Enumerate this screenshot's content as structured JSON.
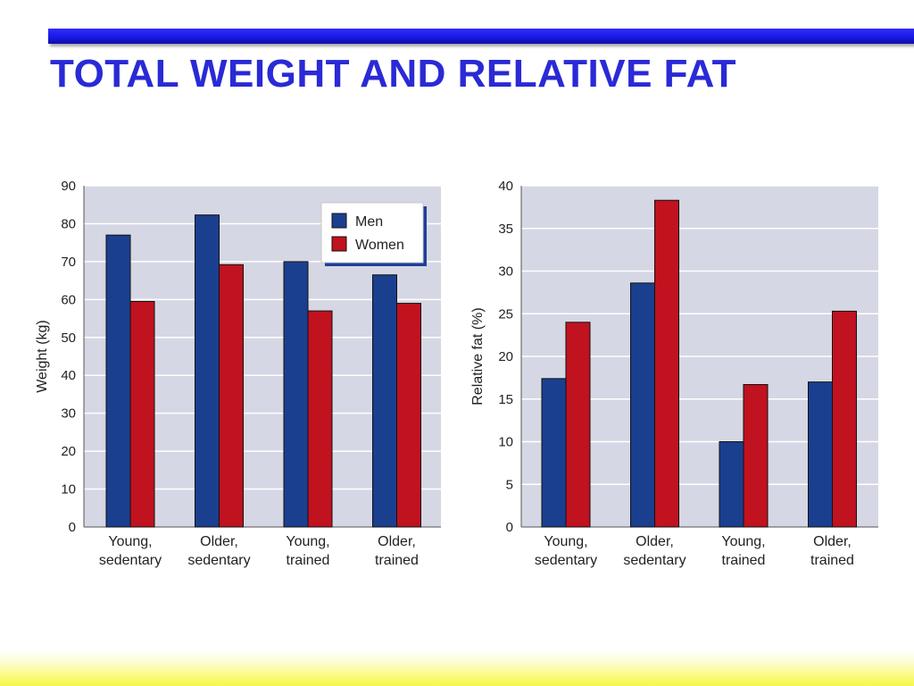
{
  "slide": {
    "title": "TOTAL WEIGHT AND RELATIVE FAT"
  },
  "colors": {
    "men": "#1b3f8f",
    "women": "#c0121f",
    "title": "#2a2ad6",
    "plot_bg": "#d5d7e4",
    "gridline": "#ffffff"
  },
  "chart_data": [
    {
      "type": "bar",
      "categories": [
        "Young,\nsedentary",
        "Older,\nsedentary",
        "Young,\ntrained",
        "Older,\ntrained"
      ],
      "series": [
        {
          "name": "Men",
          "values": [
            77,
            82.3,
            70,
            66.5
          ]
        },
        {
          "name": "Women",
          "values": [
            59.5,
            69.2,
            57,
            59
          ]
        }
      ],
      "ylabel": "Weight (kg)",
      "xlabel": "",
      "ylim": [
        0,
        90
      ],
      "yticks": [
        0,
        10,
        20,
        30,
        40,
        50,
        60,
        70,
        80,
        90
      ],
      "grid": true,
      "legend": "top-right"
    },
    {
      "type": "bar",
      "categories": [
        "Young,\nsedentary",
        "Older,\nsedentary",
        "Young,\ntrained",
        "Older,\ntrained"
      ],
      "series": [
        {
          "name": "Men",
          "values": [
            17.4,
            28.6,
            10,
            17
          ]
        },
        {
          "name": "Women",
          "values": [
            24,
            38.3,
            16.7,
            25.3
          ]
        }
      ],
      "ylabel": "Relative fat (%)",
      "xlabel": "",
      "ylim": [
        0,
        40
      ],
      "yticks": [
        0,
        5,
        10,
        15,
        20,
        25,
        30,
        35,
        40
      ],
      "grid": true
    }
  ]
}
